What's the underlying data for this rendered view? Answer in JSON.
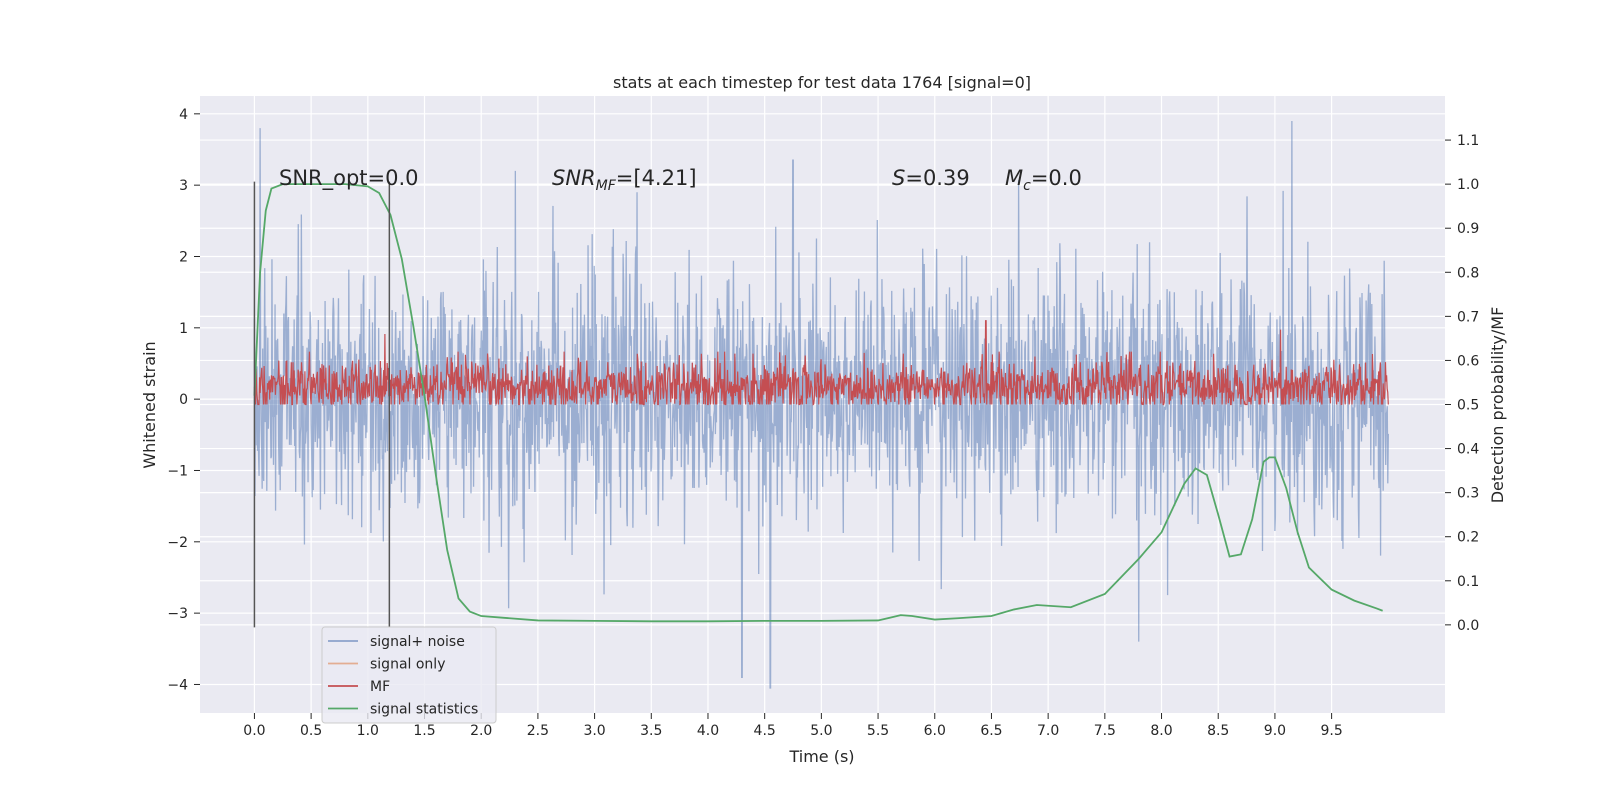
{
  "chart_data": {
    "type": "line",
    "title": "stats at each timestep for test data 1764 [signal=0]",
    "xlabel": "Time (s)",
    "ylabel_left": "Whitened strain",
    "ylabel_right": "Detection probability/MF",
    "xlim": [
      -0.48,
      10.5
    ],
    "ylim_left": [
      -4.4,
      4.25
    ],
    "ylim_right": [
      -0.2,
      1.2
    ],
    "x_ticks": [
      0.0,
      0.5,
      1.0,
      1.5,
      2.0,
      2.5,
      3.0,
      3.5,
      4.0,
      4.5,
      5.0,
      5.5,
      6.0,
      6.5,
      7.0,
      7.5,
      8.0,
      8.5,
      9.0,
      9.5
    ],
    "x_tick_labels": [
      "0.0",
      "0.5",
      "1.0",
      "1.5",
      "2.0",
      "2.5",
      "3.0",
      "3.5",
      "4.0",
      "4.5",
      "5.0",
      "5.5",
      "6.0",
      "6.5",
      "7.0",
      "7.5",
      "8.0",
      "8.5",
      "9.0",
      "9.5"
    ],
    "y_left_ticks": [
      4,
      3,
      2,
      1,
      0,
      -1,
      -2,
      -3,
      -4
    ],
    "y_left_tick_labels": [
      "4",
      "3",
      "2",
      "1",
      "0",
      "−1",
      "−2",
      "−3",
      "−4"
    ],
    "y_right_ticks": [
      1.1,
      1.0,
      0.9,
      0.8,
      0.7,
      0.6,
      0.5,
      0.4,
      0.3,
      0.2,
      0.1,
      0.0
    ],
    "y_right_tick_labels": [
      "1.1",
      "1.0",
      "0.9",
      "0.8",
      "0.7",
      "0.6",
      "0.5",
      "0.4",
      "0.3",
      "0.2",
      "0.1",
      "0.0"
    ],
    "grid": true,
    "legend_position": "lower-left",
    "annotations": {
      "snr_opt": "SNR_opt=0.0",
      "snr_mf_sym": "SNR",
      "snr_mf_sub": "MF",
      "snr_mf_val": "=[4.21]",
      "s_sym": "S",
      "s_val": "=0.39",
      "mc_sym": "M",
      "mc_sub": "c",
      "mc_val": "=0.0"
    },
    "vertical_lines_x": [
      0.0,
      1.19
    ],
    "series": [
      {
        "name": "signal+ noise",
        "axis": "left",
        "color": "#4c72b0",
        "t_start": 0.0,
        "t_end": 10.0,
        "amplitude_core": [
          -0.95,
          1.1
        ],
        "peak_range": [
          -4.0,
          3.95
        ],
        "peaks": [
          [
            0.05,
            3.8
          ],
          [
            4.3,
            -3.9
          ],
          [
            4.55,
            -4.05
          ],
          [
            7.8,
            -3.4
          ],
          [
            9.15,
            3.9
          ],
          [
            2.3,
            3.2
          ],
          [
            4.75,
            3.35
          ]
        ]
      },
      {
        "name": "signal only",
        "axis": "left",
        "color": "#dd8452",
        "values": []
      },
      {
        "name": "MF",
        "axis": "right",
        "color": "#c44e52",
        "t_start": 0.0,
        "t_end": 10.0,
        "base": 0.54,
        "band": [
          0.5,
          0.62
        ],
        "peaks": [
          [
            1.15,
            0.66
          ],
          [
            6.45,
            0.69
          ],
          [
            9.05,
            0.67
          ]
        ]
      },
      {
        "name": "signal statistics",
        "axis": "right",
        "color": "#55a868",
        "x": [
          0.0,
          0.05,
          0.1,
          0.15,
          0.25,
          0.5,
          0.8,
          1.0,
          1.1,
          1.2,
          1.3,
          1.4,
          1.5,
          1.6,
          1.7,
          1.8,
          1.9,
          2.0,
          2.2,
          2.5,
          3.0,
          3.5,
          4.0,
          4.5,
          5.0,
          5.5,
          5.7,
          5.8,
          6.0,
          6.2,
          6.5,
          6.7,
          6.9,
          7.2,
          7.5,
          7.8,
          8.0,
          8.2,
          8.3,
          8.4,
          8.5,
          8.6,
          8.7,
          8.8,
          8.9,
          8.95,
          9.0,
          9.1,
          9.2,
          9.3,
          9.5,
          9.7,
          9.9,
          9.95
        ],
        "y": [
          0.52,
          0.8,
          0.94,
          0.99,
          1.0,
          1.0,
          1.0,
          0.995,
          0.98,
          0.93,
          0.83,
          0.68,
          0.52,
          0.34,
          0.17,
          0.06,
          0.03,
          0.02,
          0.016,
          0.01,
          0.009,
          0.008,
          0.008,
          0.009,
          0.009,
          0.01,
          0.022,
          0.02,
          0.012,
          0.015,
          0.02,
          0.035,
          0.045,
          0.04,
          0.07,
          0.15,
          0.21,
          0.32,
          0.355,
          0.34,
          0.25,
          0.155,
          0.16,
          0.24,
          0.37,
          0.38,
          0.38,
          0.31,
          0.21,
          0.13,
          0.08,
          0.055,
          0.037,
          0.032
        ]
      }
    ]
  }
}
